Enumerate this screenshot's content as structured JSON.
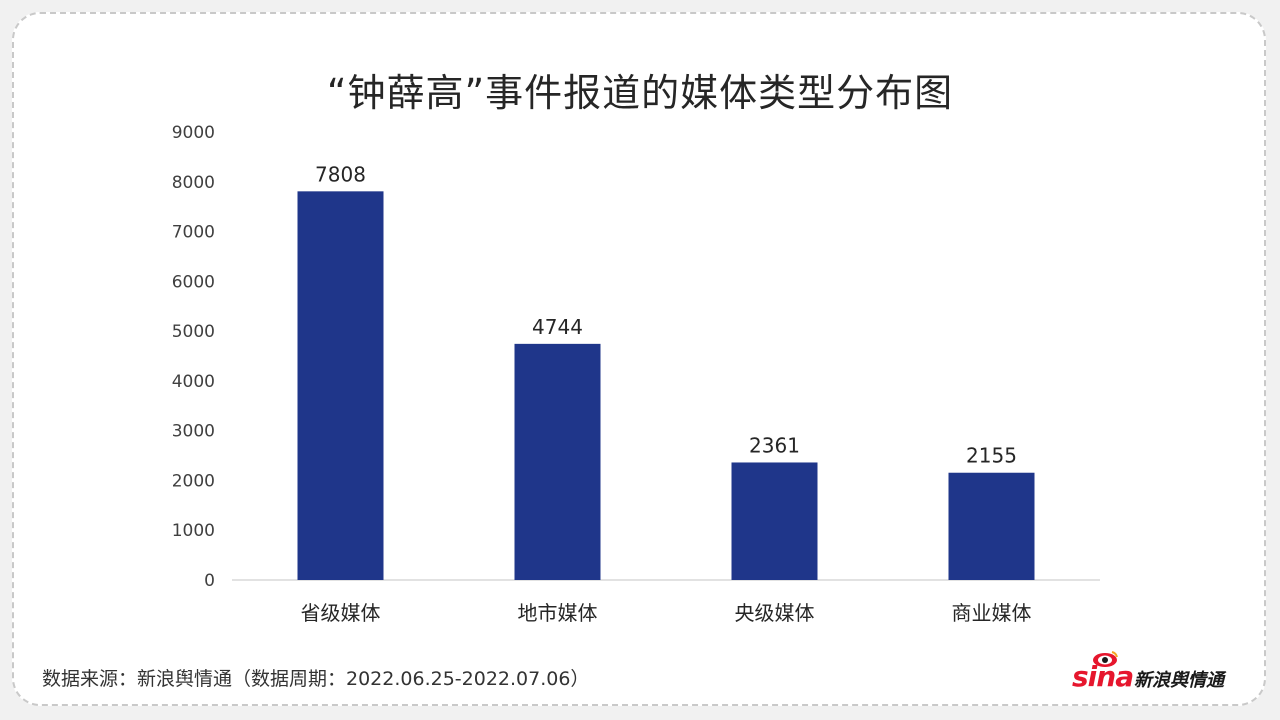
{
  "title": "“钟薛高”事件报道的媒体类型分布图",
  "source": "数据来源：新浪舆情通（数据周期：2022.06.25-2022.07.06）",
  "logo": {
    "brand": "sina",
    "product": "新浪舆情通"
  },
  "colors": {
    "bar": "#1f368a",
    "axis": "#d9d9d9",
    "label": "#404040",
    "brand_red": "#e6162d"
  },
  "chart_data": {
    "type": "bar",
    "title": "“钟薛高”事件报道的媒体类型分布图",
    "categories": [
      "省级媒体",
      "地市媒体",
      "央级媒体",
      "商业媒体"
    ],
    "values": [
      7808,
      4744,
      2361,
      2155
    ],
    "value_labels": [
      "7808",
      "4744",
      "2361",
      "2155"
    ],
    "yticks": [
      "0",
      "1000",
      "2000",
      "3000",
      "4000",
      "5000",
      "6000",
      "7000",
      "8000",
      "9000"
    ],
    "ylim": [
      0,
      9000
    ],
    "xlabel": "",
    "ylabel": "",
    "grid": false,
    "legend": "none"
  }
}
